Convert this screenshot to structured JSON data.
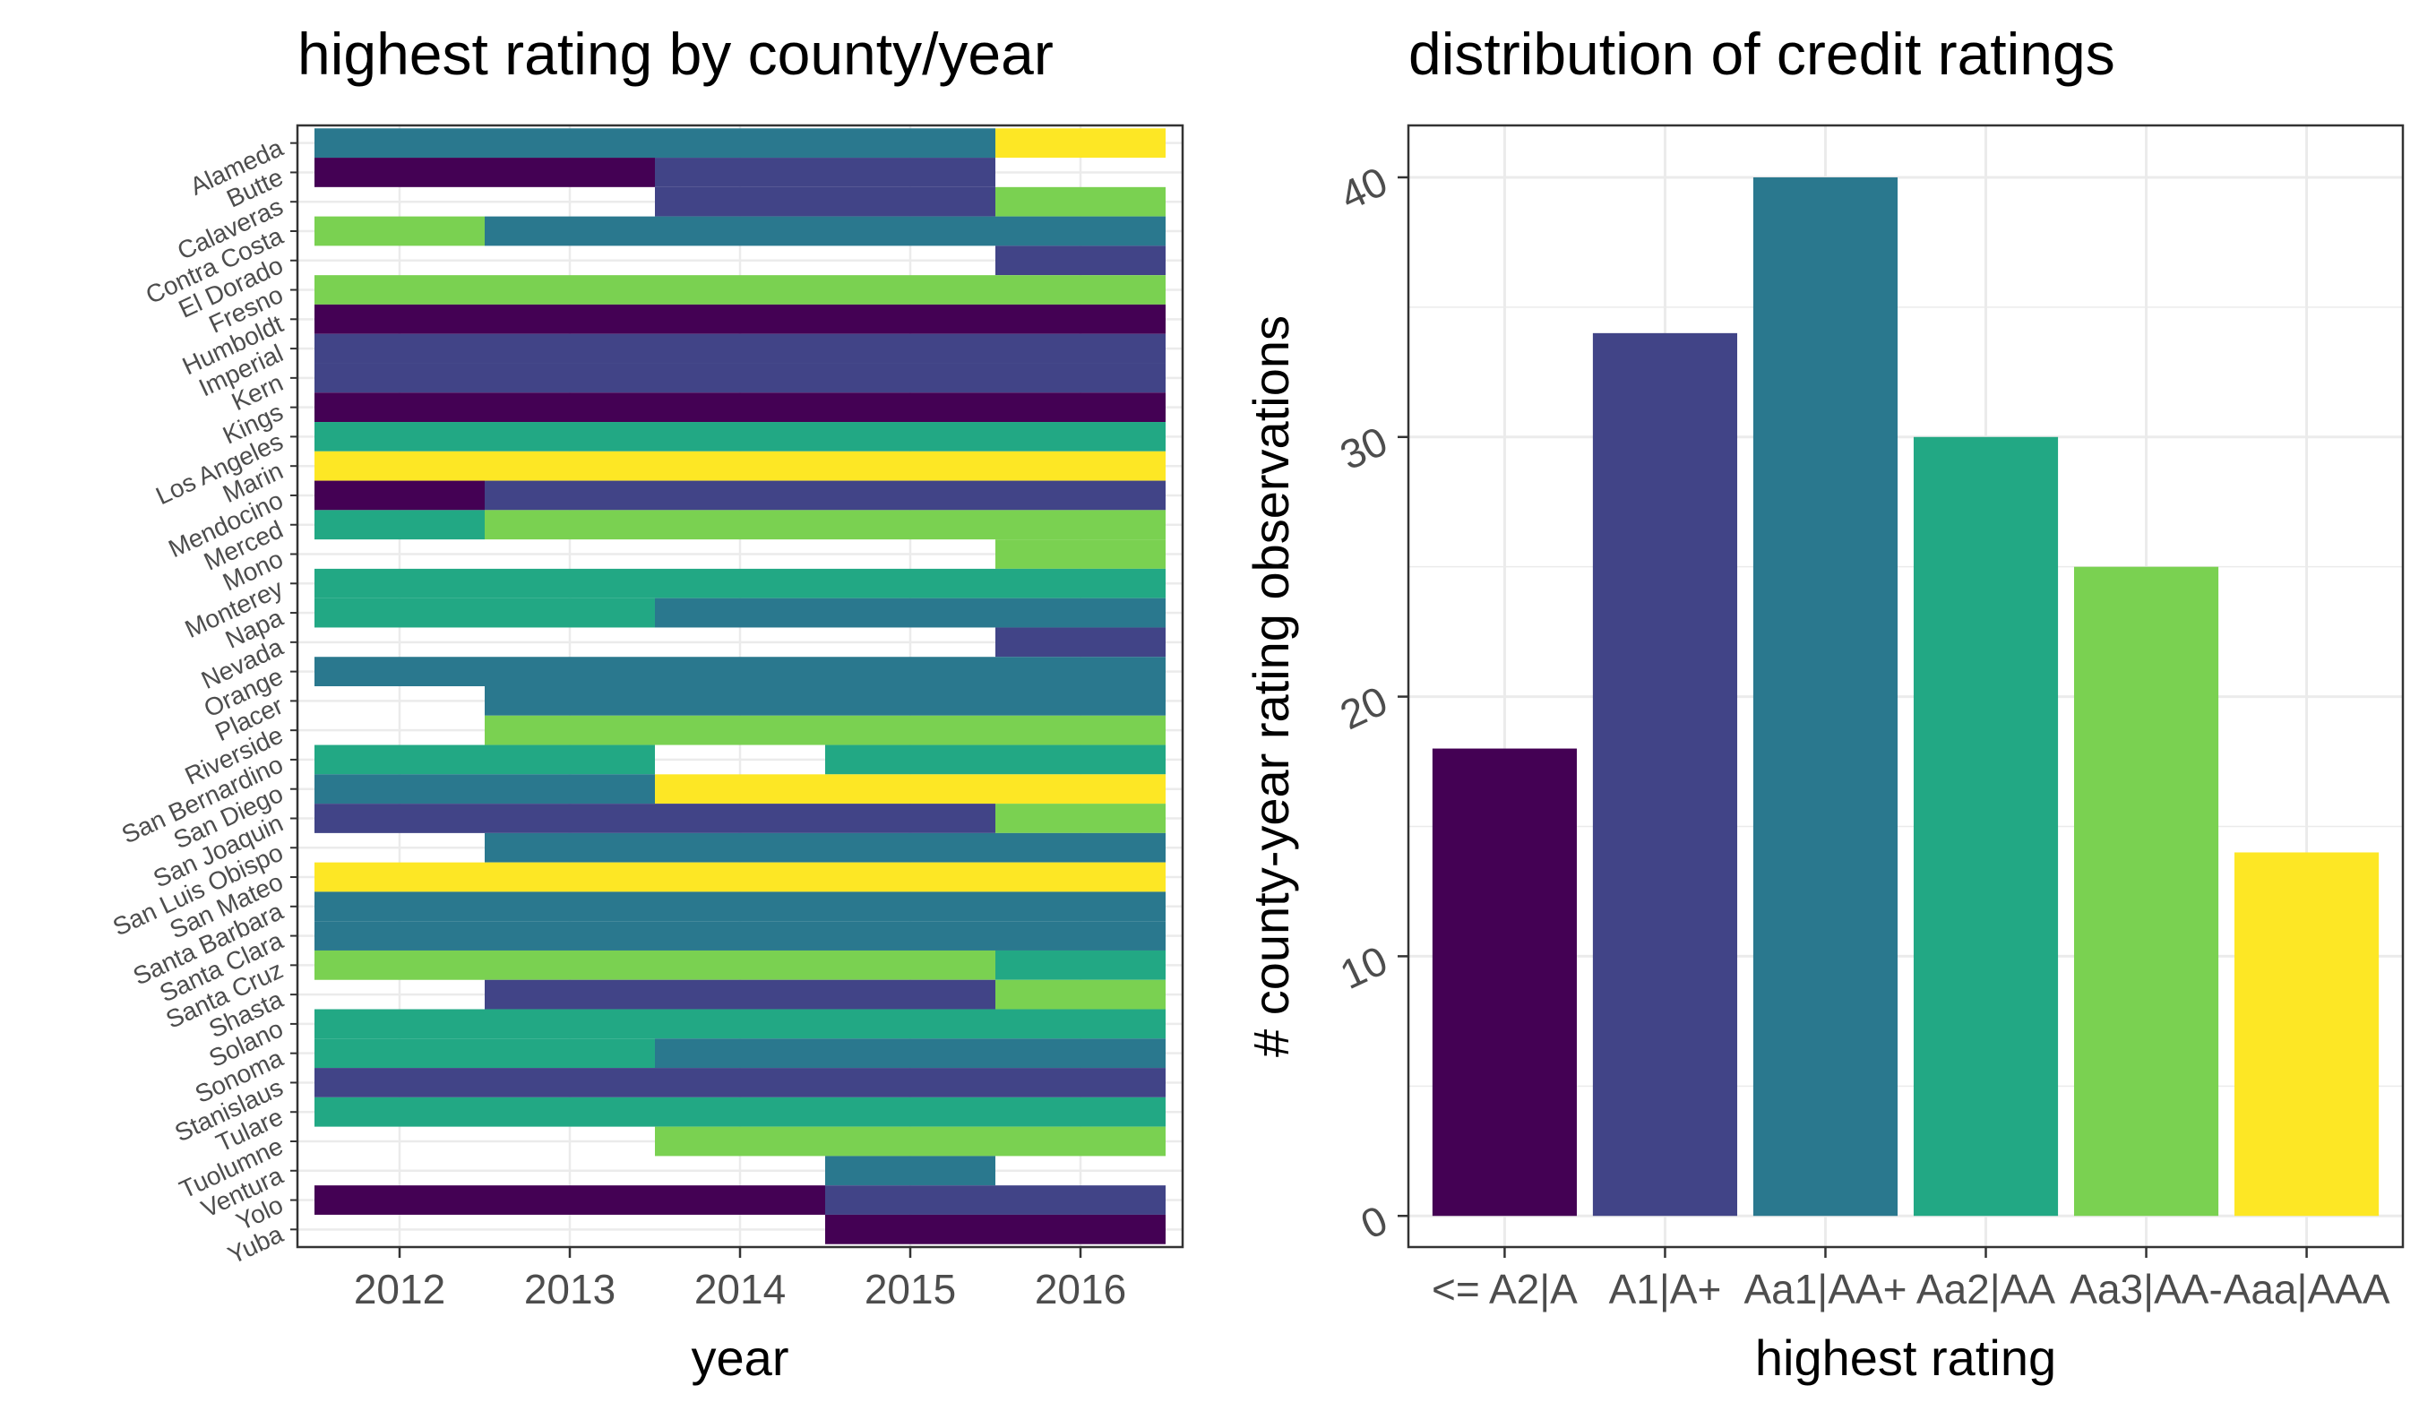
{
  "chart_data": [
    {
      "type": "heatmap",
      "title": "highest rating by county/year",
      "xlabel": "year",
      "ylabel": "",
      "x": [
        "2012",
        "2013",
        "2014",
        "2015",
        "2016"
      ],
      "y": [
        "Alameda",
        "Butte",
        "Calaveras",
        "Contra Costa",
        "El Dorado",
        "Fresno",
        "Humboldt",
        "Imperial",
        "Kern",
        "Kings",
        "Los Angeles",
        "Marin",
        "Mendocino",
        "Merced",
        "Mono",
        "Monterey",
        "Napa",
        "Nevada",
        "Orange",
        "Placer",
        "Riverside",
        "San Bernardino",
        "San Diego",
        "San Joaquin",
        "San Luis Obispo",
        "San Mateo",
        "Santa Barbara",
        "Santa Clara",
        "Santa Cruz",
        "Shasta",
        "Solano",
        "Sonoma",
        "Stanislaus",
        "Tulare",
        "Tuolumne",
        "Ventura",
        "Yolo",
        "Yuba"
      ],
      "rating_levels": [
        "<= A2|A",
        "A1|A+",
        "Aa1|AA+",
        "Aa2|AA",
        "Aa3|AA-",
        "Aaa|AAA"
      ],
      "values": [
        [
          "Aa1|AA+",
          "Aa1|AA+",
          "Aa1|AA+",
          "Aa1|AA+",
          "Aaa|AAA"
        ],
        [
          "<= A2|A",
          "<= A2|A",
          "A1|A+",
          "A1|A+",
          null
        ],
        [
          null,
          null,
          "A1|A+",
          "A1|A+",
          "Aa3|AA-"
        ],
        [
          "Aa3|AA-",
          "Aa1|AA+",
          "Aa1|AA+",
          "Aa1|AA+",
          "Aa1|AA+"
        ],
        [
          null,
          null,
          null,
          null,
          "A1|A+"
        ],
        [
          "Aa3|AA-",
          "Aa3|AA-",
          "Aa3|AA-",
          "Aa3|AA-",
          "Aa3|AA-"
        ],
        [
          "<= A2|A",
          "<= A2|A",
          "<= A2|A",
          "<= A2|A",
          "<= A2|A"
        ],
        [
          "A1|A+",
          "A1|A+",
          "A1|A+",
          "A1|A+",
          "A1|A+"
        ],
        [
          "A1|A+",
          "A1|A+",
          "A1|A+",
          "A1|A+",
          "A1|A+"
        ],
        [
          "<= A2|A",
          "<= A2|A",
          "<= A2|A",
          "<= A2|A",
          "<= A2|A"
        ],
        [
          "Aa2|AA",
          "Aa2|AA",
          "Aa2|AA",
          "Aa2|AA",
          "Aa2|AA"
        ],
        [
          "Aaa|AAA",
          "Aaa|AAA",
          "Aaa|AAA",
          "Aaa|AAA",
          "Aaa|AAA"
        ],
        [
          "<= A2|A",
          "A1|A+",
          "A1|A+",
          "A1|A+",
          "A1|A+"
        ],
        [
          "Aa2|AA",
          "Aa3|AA-",
          "Aa3|AA-",
          "Aa3|AA-",
          "Aa3|AA-"
        ],
        [
          null,
          null,
          null,
          null,
          "Aa3|AA-"
        ],
        [
          "Aa2|AA",
          "Aa2|AA",
          "Aa2|AA",
          "Aa2|AA",
          "Aa2|AA"
        ],
        [
          "Aa2|AA",
          "Aa2|AA",
          "Aa1|AA+",
          "Aa1|AA+",
          "Aa1|AA+"
        ],
        [
          null,
          null,
          null,
          null,
          "A1|A+"
        ],
        [
          "Aa1|AA+",
          "Aa1|AA+",
          "Aa1|AA+",
          "Aa1|AA+",
          "Aa1|AA+"
        ],
        [
          null,
          "Aa1|AA+",
          "Aa1|AA+",
          "Aa1|AA+",
          "Aa1|AA+"
        ],
        [
          null,
          "Aa3|AA-",
          "Aa3|AA-",
          "Aa3|AA-",
          "Aa3|AA-"
        ],
        [
          "Aa2|AA",
          "Aa2|AA",
          null,
          "Aa2|AA",
          "Aa2|AA"
        ],
        [
          "Aa1|AA+",
          "Aa1|AA+",
          "Aaa|AAA",
          "Aaa|AAA",
          "Aaa|AAA"
        ],
        [
          "A1|A+",
          "A1|A+",
          "A1|A+",
          "A1|A+",
          "Aa3|AA-"
        ],
        [
          null,
          "Aa1|AA+",
          "Aa1|AA+",
          "Aa1|AA+",
          "Aa1|AA+"
        ],
        [
          "Aaa|AAA",
          "Aaa|AAA",
          "Aaa|AAA",
          "Aaa|AAA",
          "Aaa|AAA"
        ],
        [
          "Aa1|AA+",
          "Aa1|AA+",
          "Aa1|AA+",
          "Aa1|AA+",
          "Aa1|AA+"
        ],
        [
          "Aa1|AA+",
          "Aa1|AA+",
          "Aa1|AA+",
          "Aa1|AA+",
          "Aa1|AA+"
        ],
        [
          "Aa3|AA-",
          "Aa3|AA-",
          "Aa3|AA-",
          "Aa3|AA-",
          "Aa2|AA"
        ],
        [
          null,
          "A1|A+",
          "A1|A+",
          "A1|A+",
          "Aa3|AA-"
        ],
        [
          "Aa2|AA",
          "Aa2|AA",
          "Aa2|AA",
          "Aa2|AA",
          "Aa2|AA"
        ],
        [
          "Aa2|AA",
          "Aa2|AA",
          "Aa1|AA+",
          "Aa1|AA+",
          "Aa1|AA+"
        ],
        [
          "A1|A+",
          "A1|A+",
          "A1|A+",
          "A1|A+",
          "A1|A+"
        ],
        [
          "Aa2|AA",
          "Aa2|AA",
          "Aa2|AA",
          "Aa2|AA",
          "Aa2|AA"
        ],
        [
          null,
          null,
          "Aa3|AA-",
          "Aa3|AA-",
          "Aa3|AA-"
        ],
        [
          null,
          null,
          null,
          "Aa1|AA+",
          null
        ],
        [
          "<= A2|A",
          "<= A2|A",
          "<= A2|A",
          "A1|A+",
          "A1|A+"
        ],
        [
          null,
          null,
          null,
          "<= A2|A",
          "<= A2|A"
        ]
      ]
    },
    {
      "type": "bar",
      "title": "distribution of credit ratings",
      "xlabel": "highest rating",
      "ylabel": "# county-year rating observations",
      "categories": [
        "<= A2|A",
        "A1|A+",
        "Aa1|AA+",
        "Aa2|AA",
        "Aa3|AA-",
        "Aaa|AAA"
      ],
      "values": [
        18,
        34,
        40,
        30,
        25,
        14
      ],
      "ylim": [
        -1.2,
        42
      ],
      "yticks": [
        0,
        10,
        20,
        30,
        40
      ],
      "grid": true
    }
  ],
  "colors": {
    "<= A2|A": "#440154",
    "A1|A+": "#414487",
    "Aa1|AA+": "#2A788E",
    "Aa2|AA": "#22A884",
    "Aa3|AA-": "#7AD151",
    "Aaa|AAA": "#FDE725",
    "grid": "#EBEBEB",
    "panel_border": "#333333",
    "tick_text": "#4D4D4D",
    "title_text": "#000000"
  }
}
